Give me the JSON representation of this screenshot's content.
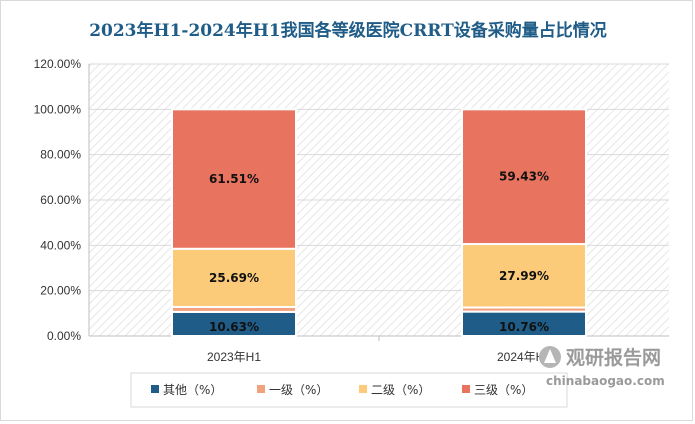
{
  "chart_data": {
    "type": "bar",
    "stacked": true,
    "title": "2023年H1-2024年H1我国各等级医院CRRT设备采购量占比情况",
    "xlabel": "",
    "ylabel": "",
    "categories": [
      "2023年H1",
      "2024年H1"
    ],
    "ylim": [
      0,
      120
    ],
    "yticks": [
      "0.00%",
      "20.00%",
      "40.00%",
      "60.00%",
      "80.00%",
      "100.00%",
      "120.00%"
    ],
    "series": [
      {
        "name": "其他（%）",
        "values": [
          10.63,
          10.76
        ],
        "labels": [
          "10.63%",
          "10.76%"
        ],
        "color": "#1f5c87"
      },
      {
        "name": "一级（%）",
        "values": [
          2.17,
          1.82
        ],
        "labels": [
          "2.17%",
          "1.82%"
        ],
        "color": "#f2a27e"
      },
      {
        "name": "二级（%）",
        "values": [
          25.69,
          27.99
        ],
        "labels": [
          "25.69%",
          "27.99%"
        ],
        "color": "#fbcb7a"
      },
      {
        "name": "三级（%）",
        "values": [
          61.51,
          59.43
        ],
        "labels": [
          "61.51%",
          "59.43%"
        ],
        "color": "#e8735f"
      }
    ],
    "grid": true,
    "legend_position": "bottom"
  },
  "watermark": {
    "brand": "观研报告网",
    "url": "chinabaogao.com"
  }
}
